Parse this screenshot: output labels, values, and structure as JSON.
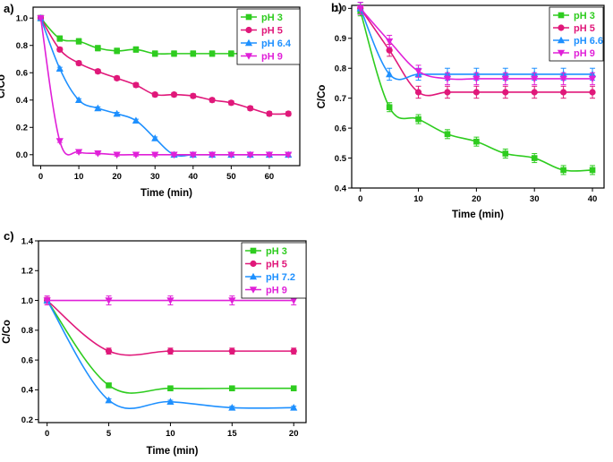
{
  "chart_data": [
    {
      "panel_label": "a)",
      "type": "line",
      "title": "",
      "xlabel": "Time (min)",
      "ylabel": "C/Co",
      "xlim": [
        -2,
        68
      ],
      "ylim": [
        -0.08,
        1.08
      ],
      "xticks": [
        0,
        10,
        20,
        30,
        40,
        50,
        60
      ],
      "yticks": [
        0.0,
        0.2,
        0.4,
        0.6,
        0.8,
        1.0
      ],
      "ytick_labels": [
        "0.0",
        "0.2",
        "0.4",
        "0.6",
        "0.8",
        "1.0"
      ],
      "grid": false,
      "legend": "top-right",
      "series": [
        {
          "name": "pH 3",
          "color": "#2ecc1f",
          "marker": "square",
          "x": [
            0,
            5,
            10,
            15,
            20,
            25,
            30,
            35,
            40,
            45,
            50,
            55,
            60,
            65
          ],
          "y": [
            1.0,
            0.85,
            0.83,
            0.78,
            0.76,
            0.77,
            0.74,
            0.74,
            0.74,
            0.74,
            0.74,
            0.74,
            0.74,
            0.74
          ],
          "err": 0.02
        },
        {
          "name": "pH 5",
          "color": "#e0187a",
          "marker": "circle",
          "x": [
            0,
            5,
            10,
            15,
            20,
            25,
            30,
            35,
            40,
            45,
            50,
            55,
            60,
            65
          ],
          "y": [
            1.0,
            0.77,
            0.67,
            0.61,
            0.56,
            0.51,
            0.44,
            0.44,
            0.43,
            0.4,
            0.38,
            0.34,
            0.3,
            0.3
          ],
          "err": 0.015
        },
        {
          "name": "pH 6.4",
          "color": "#1e90ff",
          "marker": "triangle-up",
          "x": [
            0,
            5,
            10,
            15,
            20,
            25,
            30,
            35,
            40,
            45,
            50,
            55,
            60,
            65
          ],
          "y": [
            1.0,
            0.63,
            0.4,
            0.34,
            0.3,
            0.25,
            0.12,
            0.0,
            0.0,
            0.0,
            0.0,
            0.0,
            0.0,
            0.0
          ],
          "err": 0.01
        },
        {
          "name": "pH 9",
          "color": "#e020d8",
          "marker": "triangle-down",
          "x": [
            0,
            5,
            10,
            15,
            20,
            25,
            30,
            35,
            40,
            45,
            50,
            55,
            60,
            65
          ],
          "y": [
            1.0,
            0.1,
            0.02,
            0.01,
            0.0,
            0.0,
            0.0,
            0.0,
            0.0,
            0.0,
            0.0,
            0.0,
            0.0,
            0.0
          ],
          "err": 0.01
        }
      ]
    },
    {
      "panel_label": "b)",
      "type": "line",
      "title": "",
      "xlabel": "Time (min)",
      "ylabel": "C/Co",
      "xlim": [
        -1.5,
        42
      ],
      "ylim": [
        0.4,
        1.01
      ],
      "xticks": [
        0,
        10,
        20,
        30,
        40
      ],
      "yticks": [
        0.4,
        0.5,
        0.6,
        0.7,
        0.8,
        0.9,
        1.0
      ],
      "ytick_labels": [
        "0.4",
        "0.5",
        "0.6",
        "0.7",
        "0.8",
        "0.9",
        "1.0"
      ],
      "grid": false,
      "legend": "top-right",
      "series": [
        {
          "name": "pH 3",
          "color": "#2ecc1f",
          "marker": "square",
          "x": [
            0,
            5,
            10,
            15,
            20,
            25,
            30,
            35,
            40
          ],
          "y": [
            0.99,
            0.67,
            0.63,
            0.58,
            0.555,
            0.515,
            0.5,
            0.46,
            0.46
          ],
          "err": 0.015
        },
        {
          "name": "pH 5",
          "color": "#e0187a",
          "marker": "circle",
          "x": [
            0,
            5,
            10,
            15,
            20,
            25,
            30,
            35,
            40
          ],
          "y": [
            1.0,
            0.86,
            0.72,
            0.72,
            0.72,
            0.72,
            0.72,
            0.72,
            0.72
          ],
          "err": 0.02
        },
        {
          "name": "pH 6.6",
          "color": "#1e90ff",
          "marker": "triangle-up",
          "x": [
            0,
            5,
            10,
            15,
            20,
            25,
            30,
            35,
            40
          ],
          "y": [
            1.0,
            0.78,
            0.78,
            0.78,
            0.78,
            0.78,
            0.78,
            0.78,
            0.78
          ],
          "err": 0.02
        },
        {
          "name": "pH 9",
          "color": "#e020d8",
          "marker": "triangle-down",
          "x": [
            0,
            5,
            10,
            15,
            20,
            25,
            30,
            35,
            40
          ],
          "y": [
            1.0,
            0.89,
            0.79,
            0.765,
            0.765,
            0.765,
            0.765,
            0.765,
            0.765
          ],
          "err": 0.02
        }
      ]
    },
    {
      "panel_label": "c)",
      "type": "line",
      "title": "",
      "xlabel": "Time (min)",
      "ylabel": "C/Co",
      "xlim": [
        -0.7,
        21
      ],
      "ylim": [
        0.18,
        1.4
      ],
      "xticks": [
        0,
        5,
        10,
        15,
        20
      ],
      "yticks": [
        0.2,
        0.4,
        0.6,
        0.8,
        1.0,
        1.2,
        1.4
      ],
      "ytick_labels": [
        "0.2",
        "0.4",
        "0.6",
        "0.8",
        "1.0",
        "1.2",
        "1.4"
      ],
      "grid": false,
      "legend": "top-right",
      "series": [
        {
          "name": "pH 3",
          "color": "#2ecc1f",
          "marker": "square",
          "x": [
            0,
            5,
            10,
            15,
            20
          ],
          "y": [
            1.0,
            0.43,
            0.41,
            0.41,
            0.41
          ],
          "err": 0.01
        },
        {
          "name": "pH 5",
          "color": "#e0187a",
          "marker": "circle",
          "x": [
            0,
            5,
            10,
            15,
            20
          ],
          "y": [
            1.0,
            0.66,
            0.66,
            0.66,
            0.66
          ],
          "err": 0.02
        },
        {
          "name": "pH 7.2",
          "color": "#1e90ff",
          "marker": "triangle-up",
          "x": [
            0,
            5,
            10,
            15,
            20
          ],
          "y": [
            1.0,
            0.33,
            0.32,
            0.28,
            0.28
          ],
          "err": 0.01
        },
        {
          "name": "pH 9",
          "color": "#e020d8",
          "marker": "triangle-down",
          "x": [
            0,
            5,
            10,
            15,
            20
          ],
          "y": [
            1.0,
            1.0,
            1.0,
            1.0,
            1.0
          ],
          "err": 0.03
        }
      ]
    }
  ]
}
